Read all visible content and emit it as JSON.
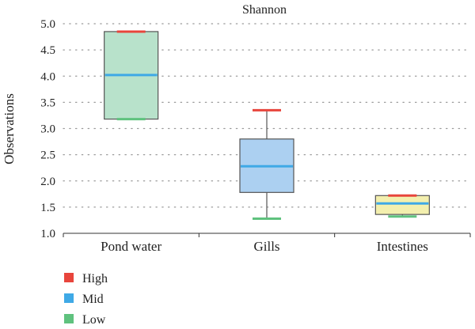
{
  "chart_data": {
    "type": "box",
    "title": "Shannon",
    "ylabel": "Observations",
    "xlabel": "",
    "ylim": [
      1.0,
      5.0
    ],
    "yticks": [
      "1.0",
      "1.5",
      "2.0",
      "2.5",
      "3.0",
      "3.5",
      "4.0",
      "4.5",
      "5.0"
    ],
    "grid": true,
    "legend_position": "bottom-left",
    "legend": [
      {
        "label": "High",
        "color": "#e8453c"
      },
      {
        "label": "Mid",
        "color": "#3fa9e6"
      },
      {
        "label": "Low",
        "color": "#5fc27e"
      }
    ],
    "categories": [
      "Pond water",
      "Gills",
      "Intestines"
    ],
    "boxes": [
      {
        "category": "Pond water",
        "high": 4.85,
        "q3": 4.85,
        "median": 4.02,
        "q1": 3.18,
        "low": 3.18,
        "fill": "#b8e2cb"
      },
      {
        "category": "Gills",
        "high": 3.35,
        "q3": 2.8,
        "median": 2.28,
        "q1": 1.78,
        "low": 1.28,
        "fill": "#acd0f1"
      },
      {
        "category": "Intestines",
        "high": 1.72,
        "q3": 1.72,
        "median": 1.57,
        "q1": 1.36,
        "low": 1.32,
        "fill": "#f3efae"
      }
    ]
  }
}
